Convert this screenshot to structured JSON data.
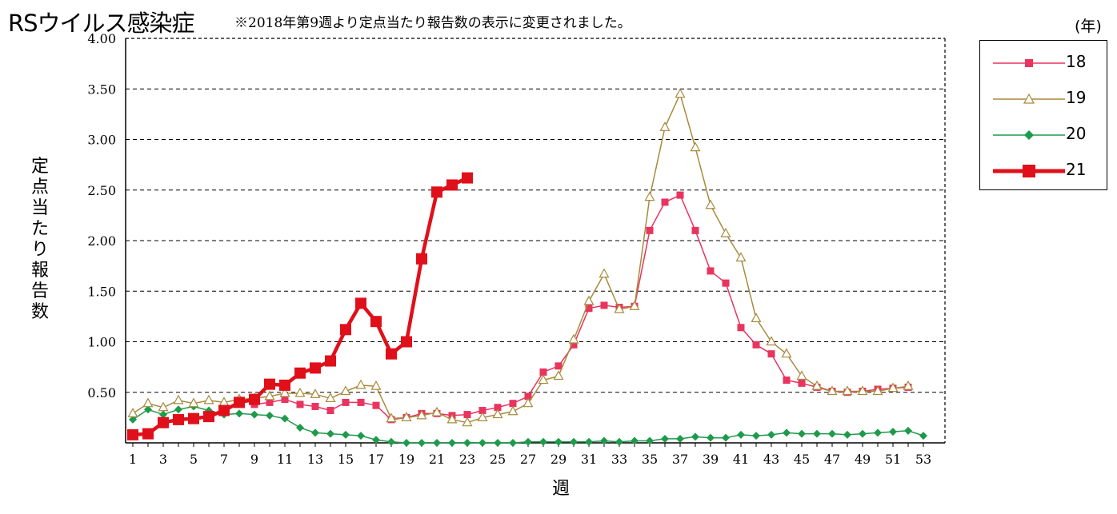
{
  "title": "RSウイルス感染症",
  "note": "※2018年第9週より定点当たり報告数の表示に変更されました。",
  "year_unit": "(年)",
  "chart_data": {
    "type": "line",
    "xlabel": "週",
    "ylabel": "定点当たり報告数",
    "ylim": [
      0,
      4.0
    ],
    "yticks": [
      "4.00",
      "3.50",
      "3.00",
      "2.50",
      "2.00",
      "1.50",
      "1.00",
      "0.50"
    ],
    "ytick_values": [
      4.0,
      3.5,
      3.0,
      2.5,
      2.0,
      1.5,
      1.0,
      0.5
    ],
    "xlim": [
      1,
      53
    ],
    "xticks": [
      1,
      3,
      5,
      7,
      9,
      11,
      13,
      15,
      17,
      19,
      21,
      23,
      25,
      27,
      29,
      31,
      33,
      35,
      37,
      39,
      41,
      43,
      45,
      47,
      49,
      51,
      53
    ],
    "grid": "horizontal dashed",
    "legend_position": "right",
    "series": [
      {
        "name": "18",
        "color": "#e8345f",
        "marker": "square",
        "values": [
          null,
          null,
          null,
          null,
          null,
          null,
          null,
          null,
          0.38,
          0.4,
          0.43,
          0.38,
          0.36,
          0.32,
          0.4,
          0.4,
          0.37,
          0.23,
          0.25,
          0.29,
          0.29,
          0.27,
          0.28,
          0.32,
          0.35,
          0.39,
          0.46,
          0.7,
          0.76,
          0.97,
          1.33,
          1.36,
          1.34,
          1.35,
          2.1,
          2.38,
          2.45,
          2.1,
          1.7,
          1.58,
          1.14,
          0.97,
          0.88,
          0.62,
          0.59,
          0.55,
          0.51,
          0.5,
          0.51,
          0.53,
          0.54,
          0.55
        ]
      },
      {
        "name": "19",
        "color": "#a88a3c",
        "marker": "triangle",
        "values": [
          0.29,
          0.39,
          0.35,
          0.42,
          0.39,
          0.42,
          0.4,
          0.43,
          0.44,
          0.46,
          0.49,
          0.49,
          0.48,
          0.44,
          0.51,
          0.57,
          0.56,
          0.24,
          0.25,
          0.27,
          0.3,
          0.23,
          0.2,
          0.25,
          0.28,
          0.31,
          0.39,
          0.62,
          0.66,
          1.02,
          1.4,
          1.67,
          1.32,
          1.35,
          2.43,
          3.12,
          3.45,
          2.92,
          2.35,
          2.07,
          1.83,
          1.23,
          1.0,
          0.88,
          0.66,
          0.56,
          0.51,
          0.51,
          0.51,
          0.51,
          0.54,
          0.56
        ]
      },
      {
        "name": "20",
        "color": "#1f9a4b",
        "marker": "diamond",
        "values": [
          0.23,
          0.33,
          0.28,
          0.33,
          0.36,
          0.32,
          0.28,
          0.29,
          0.28,
          0.27,
          0.24,
          0.15,
          0.1,
          0.09,
          0.08,
          0.07,
          0.03,
          0.01,
          0.0,
          0.0,
          0.0,
          0.0,
          0.0,
          0.0,
          0.0,
          0.0,
          0.01,
          0.01,
          0.01,
          0.01,
          0.01,
          0.02,
          0.01,
          0.02,
          0.02,
          0.04,
          0.04,
          0.06,
          0.05,
          0.05,
          0.08,
          0.07,
          0.08,
          0.1,
          0.09,
          0.09,
          0.09,
          0.08,
          0.09,
          0.1,
          0.11,
          0.12,
          0.07
        ]
      },
      {
        "name": "21",
        "color": "#e0101a",
        "marker": "square-large",
        "values": [
          0.08,
          0.09,
          0.2,
          0.23,
          0.24,
          0.26,
          0.32,
          0.4,
          0.43,
          0.58,
          0.57,
          0.69,
          0.74,
          0.81,
          1.12,
          1.38,
          1.2,
          0.88,
          1.0,
          1.82,
          2.48,
          2.55,
          2.62
        ]
      }
    ]
  }
}
